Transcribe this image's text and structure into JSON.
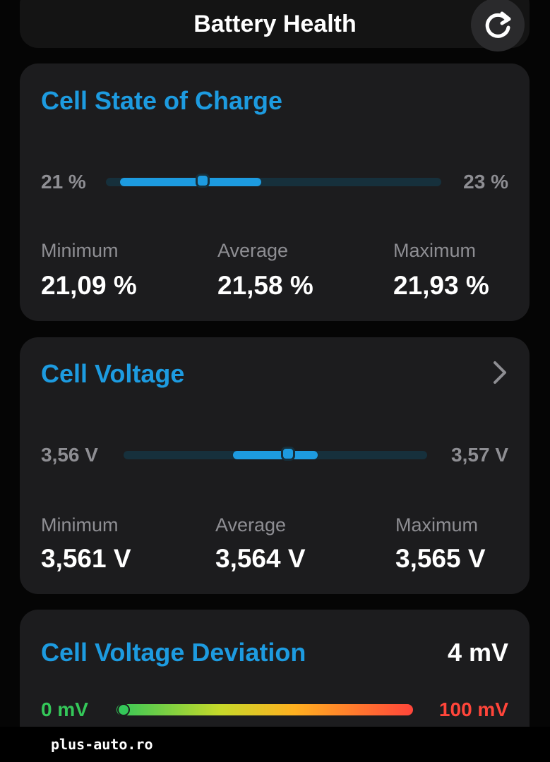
{
  "header": {
    "title": "Battery Health"
  },
  "cards": [
    {
      "title": "Cell State of Charge",
      "range_min": "21 %",
      "range_max": "23 %",
      "stats": [
        {
          "label": "Minimum",
          "value": "21,09 %"
        },
        {
          "label": "Average",
          "value": "21,58 %"
        },
        {
          "label": "Maximum",
          "value": "21,93 %"
        }
      ]
    },
    {
      "title": "Cell Voltage",
      "range_min": "3,56 V",
      "range_max": "3,57 V",
      "stats": [
        {
          "label": "Minimum",
          "value": "3,561 V"
        },
        {
          "label": "Average",
          "value": "3,564 V"
        },
        {
          "label": "Maximum",
          "value": "3,565 V"
        }
      ]
    }
  ],
  "deviation": {
    "title": "Cell Voltage Deviation",
    "value": "4 mV",
    "range_min": "0 mV",
    "range_max": "100 mV"
  },
  "watermark": "plus-auto.ro"
}
